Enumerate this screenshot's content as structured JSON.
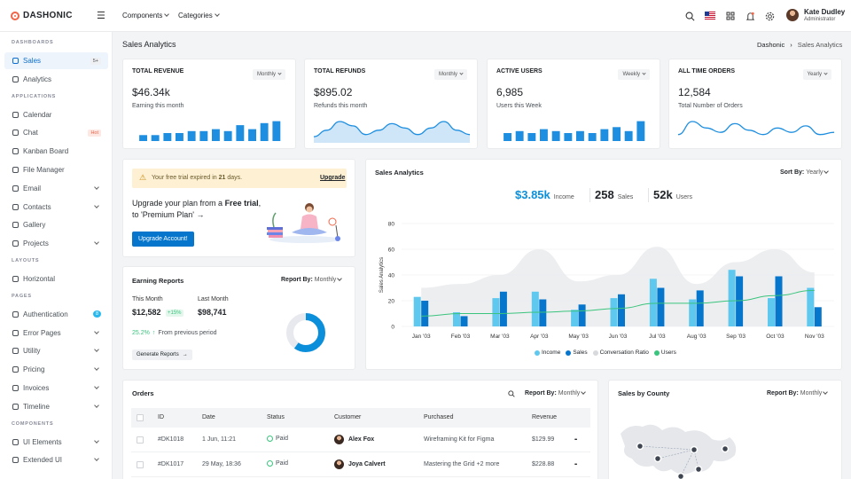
{
  "brand": {
    "name": "DASHONIC"
  },
  "topnav": [
    {
      "label": "Components"
    },
    {
      "label": "Categories"
    }
  ],
  "user": {
    "name": "Kate Dudley",
    "role": "Administrator"
  },
  "sidebar": {
    "sections": [
      {
        "title": "DASHBOARDS",
        "items": [
          {
            "label": "Sales",
            "badge": "5+"
          },
          {
            "label": "Analytics"
          }
        ]
      },
      {
        "title": "APPLICATIONS",
        "items": [
          {
            "label": "Calendar"
          },
          {
            "label": "Chat",
            "badge": "Hot"
          },
          {
            "label": "Kanban Board"
          },
          {
            "label": "File Manager"
          },
          {
            "label": "Email"
          },
          {
            "label": "Contacts"
          },
          {
            "label": "Gallery"
          },
          {
            "label": "Projects"
          }
        ]
      },
      {
        "title": "LAYOUTS",
        "items": [
          {
            "label": "Horizontal"
          }
        ]
      },
      {
        "title": "PAGES",
        "items": [
          {
            "label": "Authentication",
            "badge": "8"
          },
          {
            "label": "Error Pages"
          },
          {
            "label": "Utility"
          },
          {
            "label": "Pricing"
          },
          {
            "label": "Invoices"
          },
          {
            "label": "Timeline"
          }
        ]
      },
      {
        "title": "COMPONENTS",
        "items": [
          {
            "label": "UI Elements"
          },
          {
            "label": "Extended UI"
          }
        ]
      }
    ]
  },
  "page": {
    "title": "Sales Analytics",
    "breadcrumb": [
      "Dashonic",
      "Sales Analytics"
    ]
  },
  "stats": [
    {
      "title": "TOTAL REVENUE",
      "period": "Monthly",
      "value": "$46.34k",
      "caption": "Earning this month",
      "spark": "bar",
      "spark_values": [
        3,
        3,
        4,
        4,
        5,
        5,
        6,
        5,
        8,
        6,
        9,
        10
      ]
    },
    {
      "title": "TOTAL REFUNDS",
      "period": "Monthly",
      "value": "$895.02",
      "caption": "Refunds this month",
      "spark": "area",
      "spark_values": [
        2,
        5,
        9,
        7,
        3,
        5,
        8,
        6,
        3,
        6,
        9,
        5,
        3
      ]
    },
    {
      "title": "ACTIVE USERS",
      "period": "Weekly",
      "value": "6,985",
      "caption": "Users this Week",
      "spark": "bar",
      "spark_values": [
        4,
        5,
        4,
        6,
        5,
        4,
        5,
        4,
        6,
        7,
        5,
        10
      ]
    },
    {
      "title": "ALL TIME ORDERS",
      "period": "Yearly",
      "value": "12,584",
      "caption": "Total Number of Orders",
      "spark": "line",
      "spark_values": [
        3,
        9,
        6,
        4,
        8,
        5,
        3,
        6,
        4,
        7,
        3,
        4
      ]
    }
  ],
  "trial": {
    "notice_pre": "Your free trial expired in ",
    "notice_days": "21",
    "notice_post": " days.",
    "upgrade_link": "Upgrade",
    "text_pre": "Upgrade your plan from a ",
    "text_bold1": "Free trial",
    "text_mid": ", to 'Premium Plan' →",
    "button": "Upgrade Account!"
  },
  "earning": {
    "title": "Earning Reports",
    "report_label": "Report By:",
    "report_value": "Monthly",
    "this_month_label": "This Month",
    "this_month_value": "$12,582",
    "this_month_change": "+15%",
    "last_month_label": "Last Month",
    "last_month_value": "$98,741",
    "change_value": "25.2%",
    "change_text": "From previous period",
    "button": "Generate Reports",
    "donut_fraction": 0.6
  },
  "sales": {
    "title": "Sales Analytics",
    "sort_label": "Sort By:",
    "sort_value": "Yearly",
    "income_value": "$3.85k",
    "income_label": "Income",
    "sales_value": "258",
    "sales_label": "Sales",
    "users_value": "52k",
    "users_label": "Users",
    "legend": [
      "Income",
      "Sales",
      "Conversation Ratio",
      "Users"
    ]
  },
  "chart_data": {
    "type": "bar",
    "ylabel": "Sales Analytics",
    "ylim": [
      0,
      80
    ],
    "yticks": [
      "0",
      "20",
      "40",
      "60",
      "80"
    ],
    "categories": [
      "Jan '03",
      "Feb '03",
      "Mar '03",
      "Apr '03",
      "May '03",
      "Jun '03",
      "Jul '03",
      "Aug '03",
      "Sep '03",
      "Oct '03",
      "Nov '03"
    ],
    "series": [
      {
        "name": "Income",
        "type": "bar",
        "color": "#5ec8ef",
        "values": [
          23,
          11,
          22,
          27,
          13,
          22,
          37,
          21,
          44,
          22,
          30
        ]
      },
      {
        "name": "Sales",
        "type": "bar",
        "color": "#0576cc",
        "values": [
          20,
          8,
          27,
          21,
          17,
          25,
          30,
          28,
          39,
          39,
          15
        ]
      },
      {
        "name": "Conversation Ratio",
        "type": "area",
        "color": "#e9eaec",
        "values": [
          30,
          33,
          40,
          60,
          35,
          40,
          62,
          33,
          50,
          60,
          42
        ]
      },
      {
        "name": "Users",
        "type": "line",
        "color": "#3ac47d",
        "values": [
          8,
          10,
          10,
          11,
          12,
          14,
          18,
          18,
          20,
          24,
          28
        ]
      }
    ]
  },
  "orders": {
    "title": "Orders",
    "report_label": "Report By:",
    "report_value": "Monthly",
    "columns": [
      "ID",
      "Date",
      "Status",
      "Customer",
      "Purchased",
      "Revenue"
    ],
    "rows": [
      {
        "id": "#DK1018",
        "date": "1 Jun, 11:21",
        "status": "Paid",
        "customer": "Alex Fox",
        "purchased": "Wireframing Kit for Figma",
        "revenue": "$129.99"
      },
      {
        "id": "#DK1017",
        "date": "29 May, 18:36",
        "status": "Paid",
        "customer": "Joya Calvert",
        "purchased": "Mastering the Grid +2 more",
        "revenue": "$228.88"
      }
    ]
  },
  "county": {
    "title": "Sales by County",
    "report_label": "Report By:",
    "report_value": "Monthly"
  }
}
